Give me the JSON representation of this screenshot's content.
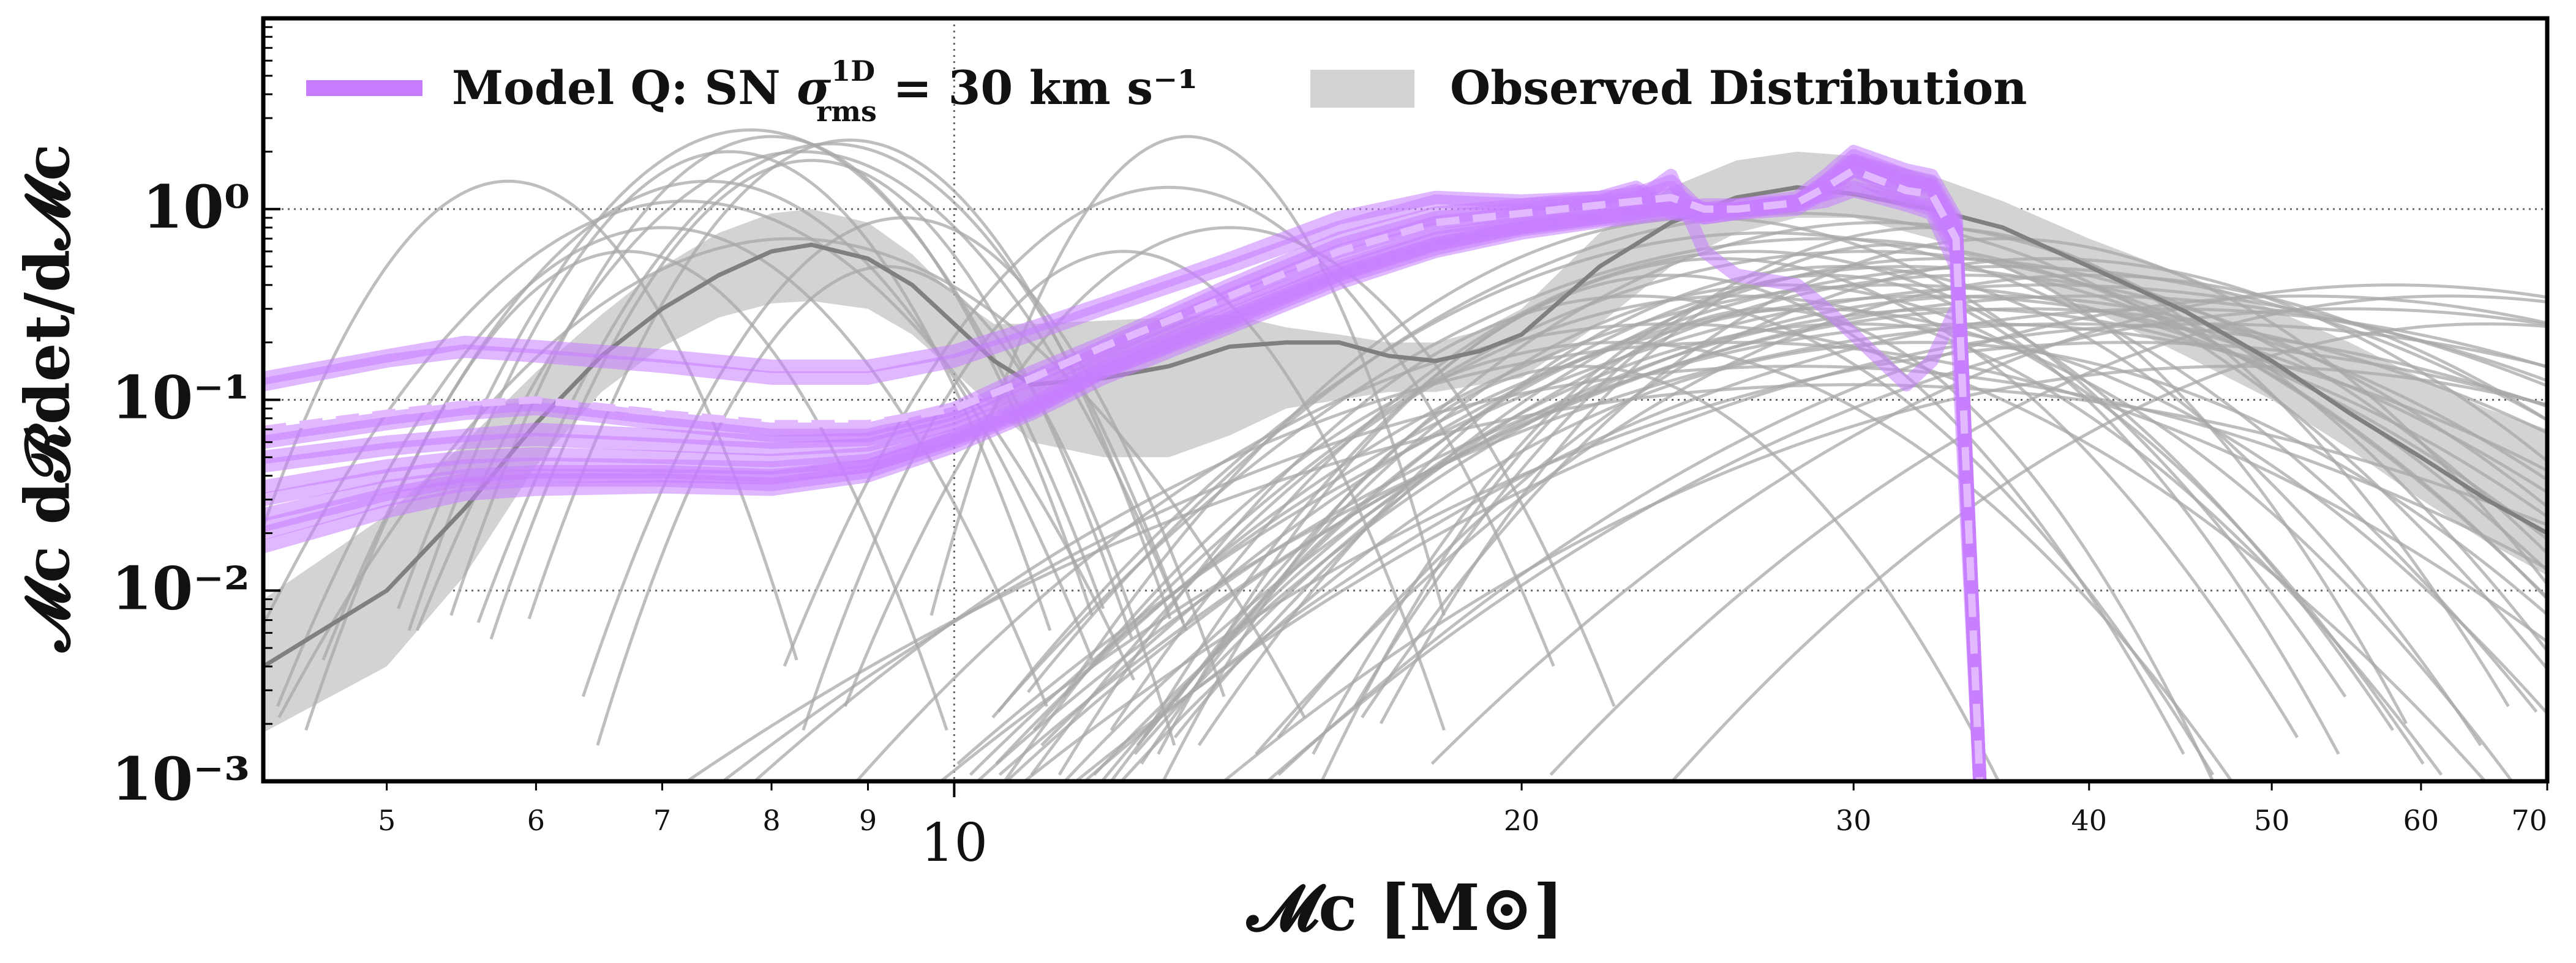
{
  "chart_data": {
    "type": "line",
    "xlabel": "𝓜c [M⊙]",
    "ylabel": "𝓜c d𝓡det/d𝓜c",
    "xscale": "log",
    "yscale": "log",
    "xlim": [
      4.3,
      70
    ],
    "ylim": [
      0.001,
      10
    ],
    "grid": "dotted major gridlines",
    "legend_position": "top",
    "x_major_ticks": [
      {
        "value": 10,
        "label": "10"
      }
    ],
    "x_minor_ticks": [
      {
        "value": 5,
        "label": "5"
      },
      {
        "value": 6,
        "label": "6"
      },
      {
        "value": 7,
        "label": "7"
      },
      {
        "value": 8,
        "label": "8"
      },
      {
        "value": 9,
        "label": "9"
      },
      {
        "value": 20,
        "label": "20"
      },
      {
        "value": 30,
        "label": "30"
      },
      {
        "value": 40,
        "label": "40"
      },
      {
        "value": 50,
        "label": "50"
      },
      {
        "value": 60,
        "label": "60"
      },
      {
        "value": 70,
        "label": "70"
      }
    ],
    "y_ticks": [
      {
        "value": 0.001,
        "label": "10⁻³"
      },
      {
        "value": 0.01,
        "label": "10⁻²"
      },
      {
        "value": 0.1,
        "label": "10⁻¹"
      },
      {
        "value": 1,
        "label": "10⁰"
      }
    ],
    "legend": [
      {
        "label_main": "Model Q: SN ",
        "label_sigma": "σ",
        "label_sup": "1D",
        "label_sub": "rms",
        "label_rest": " = 30 km s⁻¹",
        "color": "#c77dff",
        "style": "line"
      },
      {
        "label": "Observed Distribution",
        "color": "#d3d3d3",
        "style": "patch"
      }
    ],
    "observed_band": {
      "color": "#d3d3d3",
      "x": [
        4.3,
        5,
        5.5,
        6,
        6.5,
        7,
        7.5,
        8,
        8.4,
        9,
        9.5,
        10,
        10.5,
        11,
        12,
        13,
        14,
        15,
        16,
        17,
        18,
        19,
        20,
        22,
        24,
        26,
        28,
        30,
        33,
        36,
        40,
        45,
        50,
        55,
        60,
        65,
        70
      ],
      "lower": [
        0.0018,
        0.004,
        0.012,
        0.045,
        0.11,
        0.19,
        0.27,
        0.32,
        0.33,
        0.3,
        0.22,
        0.14,
        0.09,
        0.06,
        0.05,
        0.05,
        0.065,
        0.09,
        0.1,
        0.11,
        0.11,
        0.12,
        0.13,
        0.25,
        0.5,
        0.75,
        0.9,
        0.9,
        0.7,
        0.5,
        0.3,
        0.17,
        0.1,
        0.055,
        0.03,
        0.018,
        0.012
      ],
      "upper": [
        0.009,
        0.025,
        0.06,
        0.14,
        0.28,
        0.5,
        0.75,
        0.95,
        1.0,
        0.85,
        0.58,
        0.35,
        0.25,
        0.25,
        0.26,
        0.27,
        0.28,
        0.24,
        0.22,
        0.2,
        0.2,
        0.23,
        0.3,
        0.75,
        1.3,
        1.8,
        2.0,
        1.9,
        1.5,
        1.1,
        0.7,
        0.45,
        0.3,
        0.2,
        0.13,
        0.09,
        0.07
      ]
    },
    "observed_median": {
      "color": "#808080",
      "x": [
        4.3,
        5,
        5.5,
        6,
        6.5,
        7,
        7.5,
        8,
        8.4,
        9,
        9.5,
        10,
        10.5,
        11,
        12,
        13,
        14,
        15,
        16,
        17,
        18,
        19,
        20,
        22,
        24,
        26,
        28,
        30,
        33,
        36,
        40,
        45,
        50,
        55,
        60,
        65,
        70
      ],
      "y": [
        0.004,
        0.01,
        0.027,
        0.075,
        0.17,
        0.3,
        0.45,
        0.6,
        0.65,
        0.55,
        0.4,
        0.25,
        0.16,
        0.12,
        0.13,
        0.15,
        0.19,
        0.2,
        0.2,
        0.17,
        0.16,
        0.18,
        0.22,
        0.5,
        0.85,
        1.15,
        1.3,
        1.2,
        1.0,
        0.8,
        0.5,
        0.29,
        0.16,
        0.085,
        0.05,
        0.03,
        0.02
      ]
    },
    "event_curves": {
      "color": "#a8a8a8",
      "description_count": 70,
      "peaks": [
        {
          "c": 5.8,
          "w": 0.045,
          "p": 1.4
        },
        {
          "c": 6.7,
          "w": 0.05,
          "p": 0.6
        },
        {
          "c": 7.0,
          "w": 0.06,
          "p": 0.8
        },
        {
          "c": 7.4,
          "w": 0.06,
          "p": 1.4
        },
        {
          "c": 7.6,
          "w": 0.05,
          "p": 2.0
        },
        {
          "c": 7.8,
          "w": 0.055,
          "p": 2.6
        },
        {
          "c": 8.0,
          "w": 0.05,
          "p": 2.4
        },
        {
          "c": 8.3,
          "w": 0.06,
          "p": 2.0
        },
        {
          "c": 8.4,
          "w": 0.05,
          "p": 1.8
        },
        {
          "c": 8.6,
          "w": 0.055,
          "p": 2.2
        },
        {
          "c": 8.8,
          "w": 0.05,
          "p": 2.3
        },
        {
          "c": 9.2,
          "w": 0.045,
          "p": 0.5
        },
        {
          "c": 9.4,
          "w": 0.05,
          "p": 0.9
        },
        {
          "c": 8.2,
          "w": 0.08,
          "p": 0.7
        },
        {
          "c": 7.2,
          "w": 0.07,
          "p": 1.1
        },
        {
          "c": 12.3,
          "w": 0.05,
          "p": 0.6
        },
        {
          "c": 13.3,
          "w": 0.04,
          "p": 2.4
        },
        {
          "c": 13.0,
          "w": 0.06,
          "p": 1.3
        },
        {
          "c": 14.0,
          "w": 0.06,
          "p": 0.8
        },
        {
          "c": 21.5,
          "w": 0.07,
          "p": 0.15
        },
        {
          "c": 23.0,
          "w": 0.09,
          "p": 0.35
        },
        {
          "c": 24.0,
          "w": 0.08,
          "p": 0.45
        },
        {
          "c": 25.0,
          "w": 0.1,
          "p": 0.9
        },
        {
          "c": 25.5,
          "w": 0.09,
          "p": 0.55
        },
        {
          "c": 26.0,
          "w": 0.11,
          "p": 0.35
        },
        {
          "c": 26.5,
          "w": 0.1,
          "p": 0.6
        },
        {
          "c": 27.0,
          "w": 0.12,
          "p": 0.75
        },
        {
          "c": 27.5,
          "w": 0.1,
          "p": 0.4
        },
        {
          "c": 28.0,
          "w": 0.12,
          "p": 0.95
        },
        {
          "c": 28.5,
          "w": 0.11,
          "p": 0.3
        },
        {
          "c": 29.0,
          "w": 0.13,
          "p": 0.7
        },
        {
          "c": 29.5,
          "w": 0.1,
          "p": 0.5
        },
        {
          "c": 30.0,
          "w": 0.12,
          "p": 0.25
        },
        {
          "c": 30.5,
          "w": 0.13,
          "p": 0.6
        },
        {
          "c": 31.0,
          "w": 0.11,
          "p": 0.85
        },
        {
          "c": 31.5,
          "w": 0.14,
          "p": 0.4
        },
        {
          "c": 32.0,
          "w": 0.12,
          "p": 0.5
        },
        {
          "c": 32.5,
          "w": 0.13,
          "p": 0.2
        },
        {
          "c": 33.0,
          "w": 0.15,
          "p": 0.35
        },
        {
          "c": 33.5,
          "w": 0.12,
          "p": 0.55
        },
        {
          "c": 34.0,
          "w": 0.14,
          "p": 0.3
        },
        {
          "c": 34.5,
          "w": 0.13,
          "p": 0.45
        },
        {
          "c": 35.0,
          "w": 0.16,
          "p": 0.25
        },
        {
          "c": 35.5,
          "w": 0.14,
          "p": 0.35
        },
        {
          "c": 36.0,
          "w": 0.15,
          "p": 0.5
        },
        {
          "c": 37.0,
          "w": 0.16,
          "p": 0.3
        },
        {
          "c": 38.0,
          "w": 0.17,
          "p": 0.4
        },
        {
          "c": 39.0,
          "w": 0.18,
          "p": 0.25
        },
        {
          "c": 40.0,
          "w": 0.17,
          "p": 0.35
        },
        {
          "c": 42.0,
          "w": 0.18,
          "p": 0.2
        },
        {
          "c": 44.0,
          "w": 0.17,
          "p": 0.3
        },
        {
          "c": 46.0,
          "w": 0.18,
          "p": 0.25
        },
        {
          "c": 48.0,
          "w": 0.17,
          "p": 0.15
        },
        {
          "c": 52.0,
          "w": 0.16,
          "p": 0.35
        },
        {
          "c": 55.0,
          "w": 0.17,
          "p": 0.3
        },
        {
          "c": 58.0,
          "w": 0.15,
          "p": 0.4
        },
        {
          "c": 62.0,
          "w": 0.14,
          "p": 0.35
        },
        {
          "c": 65.0,
          "w": 0.13,
          "p": 0.25
        },
        {
          "c": 26.0,
          "w": 0.16,
          "p": 0.2
        },
        {
          "c": 28.0,
          "w": 0.18,
          "p": 0.15
        },
        {
          "c": 30.0,
          "w": 0.2,
          "p": 0.12
        },
        {
          "c": 24.0,
          "w": 0.13,
          "p": 0.25
        },
        {
          "c": 22.5,
          "w": 0.1,
          "p": 0.2
        },
        {
          "c": 33.0,
          "w": 0.09,
          "p": 0.8
        },
        {
          "c": 31.5,
          "w": 0.08,
          "p": 0.65
        },
        {
          "c": 29.0,
          "w": 0.08,
          "p": 0.45
        },
        {
          "c": 27.0,
          "w": 0.07,
          "p": 0.3
        },
        {
          "c": 36.0,
          "w": 0.1,
          "p": 0.7
        },
        {
          "c": 38.0,
          "w": 0.12,
          "p": 0.55
        },
        {
          "c": 40.0,
          "w": 0.13,
          "p": 0.45
        }
      ]
    },
    "model_curves": {
      "color": "#c77dff",
      "x": [
        4.3,
        5,
        5.5,
        6,
        7,
        8,
        9,
        10,
        11,
        12,
        14,
        16,
        18,
        20,
        22,
        23,
        24,
        25,
        26,
        28,
        29,
        30,
        32,
        33,
        34,
        35
      ],
      "series": [
        {
          "y": [
            0.13,
            0.17,
            0.2,
            0.19,
            0.17,
            0.15,
            0.15,
            0.18,
            0.24,
            0.32,
            0.55,
            0.9,
            1.15,
            1.1,
            1.15,
            1.3,
            1.0,
            1.05,
            1.05,
            1.1,
            1.2,
            1.3,
            1.1,
            1.0,
            0.6,
            0.001
          ]
        },
        {
          "y": [
            0.12,
            0.16,
            0.18,
            0.17,
            0.15,
            0.13,
            0.13,
            0.16,
            0.22,
            0.3,
            0.5,
            0.8,
            1.1,
            1.05,
            1.1,
            1.25,
            0.95,
            1.0,
            1.0,
            1.05,
            1.1,
            1.25,
            1.05,
            0.95,
            0.5,
            0.001
          ]
        },
        {
          "y": [
            0.065,
            0.08,
            0.09,
            0.095,
            0.08,
            0.07,
            0.07,
            0.09,
            0.14,
            0.2,
            0.4,
            0.7,
            0.95,
            1.05,
            1.15,
            1.2,
            1.4,
            0.95,
            1.0,
            1.1,
            1.3,
            1.6,
            1.2,
            1.1,
            0.7,
            0.001
          ]
        },
        {
          "y": [
            0.06,
            0.075,
            0.085,
            0.09,
            0.075,
            0.065,
            0.065,
            0.085,
            0.13,
            0.19,
            0.38,
            0.65,
            0.9,
            1.0,
            1.1,
            1.15,
            1.3,
            0.9,
            0.95,
            1.05,
            1.2,
            1.5,
            1.1,
            1.05,
            0.65,
            0.001
          ]
        },
        {
          "y": [
            0.05,
            0.06,
            0.065,
            0.07,
            0.065,
            0.06,
            0.062,
            0.08,
            0.12,
            0.18,
            0.35,
            0.6,
            0.85,
            0.95,
            1.05,
            1.1,
            1.5,
            0.6,
            0.45,
            0.4,
            0.3,
            0.22,
            0.12,
            0.16,
            0.3,
            0.001
          ]
        },
        {
          "y": [
            0.045,
            0.055,
            0.06,
            0.062,
            0.058,
            0.055,
            0.058,
            0.075,
            0.11,
            0.17,
            0.33,
            0.55,
            0.8,
            0.9,
            1.0,
            1.05,
            1.2,
            1.0,
            1.0,
            1.1,
            1.4,
            1.8,
            1.5,
            1.3,
            0.8,
            0.001
          ]
        },
        {
          "y": [
            0.035,
            0.045,
            0.05,
            0.052,
            0.05,
            0.048,
            0.052,
            0.07,
            0.1,
            0.16,
            0.3,
            0.5,
            0.72,
            0.85,
            0.95,
            1.0,
            1.1,
            1.0,
            1.05,
            1.15,
            1.5,
            2.0,
            1.6,
            1.5,
            0.9,
            0.001
          ]
        },
        {
          "y": [
            0.03,
            0.04,
            0.045,
            0.046,
            0.045,
            0.044,
            0.048,
            0.065,
            0.095,
            0.15,
            0.28,
            0.48,
            0.7,
            0.82,
            0.92,
            0.98,
            1.05,
            0.95,
            1.0,
            1.1,
            1.4,
            1.9,
            1.5,
            1.4,
            0.85,
            0.001
          ]
        },
        {
          "y": [
            0.025,
            0.035,
            0.04,
            0.042,
            0.042,
            0.04,
            0.045,
            0.062,
            0.09,
            0.14,
            0.26,
            0.45,
            0.65,
            0.8,
            0.9,
            0.95,
            1.0,
            0.95,
            1.0,
            1.1,
            1.35,
            1.8,
            1.4,
            1.35,
            0.8,
            0.001
          ]
        },
        {
          "y": [
            0.02,
            0.03,
            0.036,
            0.038,
            0.038,
            0.036,
            0.042,
            0.06,
            0.088,
            0.14,
            0.25,
            0.43,
            0.62,
            0.78,
            0.88,
            0.92,
            0.98,
            0.92,
            0.98,
            1.05,
            1.3,
            1.7,
            1.35,
            1.3,
            0.75,
            0.001
          ]
        },
        {
          "y": [
            0.017,
            0.026,
            0.032,
            0.034,
            0.035,
            0.034,
            0.04,
            0.057,
            0.085,
            0.13,
            0.24,
            0.41,
            0.6,
            0.75,
            0.86,
            0.9,
            0.95,
            0.9,
            0.95,
            1.0,
            1.25,
            1.6,
            1.3,
            1.25,
            0.7,
            0.001
          ]
        },
        {
          "y": [
            0.022,
            0.032,
            0.038,
            0.04,
            0.04,
            0.039,
            0.045,
            0.063,
            0.092,
            0.145,
            0.27,
            0.46,
            0.66,
            0.8,
            0.9,
            0.95,
            1.02,
            0.94,
            1.0,
            1.07,
            1.33,
            1.75,
            1.38,
            1.32,
            0.78,
            0.001
          ]
        }
      ],
      "median_dashed": {
        "y": [
          0.07,
          0.085,
          0.095,
          0.1,
          0.085,
          0.075,
          0.075,
          0.09,
          0.13,
          0.19,
          0.35,
          0.6,
          0.85,
          0.95,
          1.05,
          1.1,
          1.15,
          1.0,
          1.0,
          1.08,
          1.3,
          1.6,
          1.25,
          1.2,
          0.7,
          0.001
        ]
      }
    }
  }
}
